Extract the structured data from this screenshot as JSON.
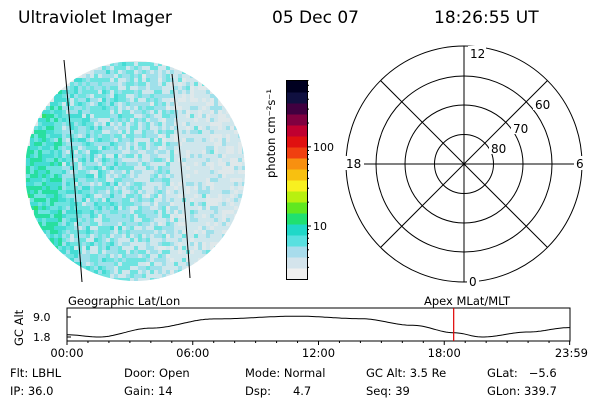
{
  "header": {
    "instrument": "Ultraviolet Imager",
    "date": "05 Dec 07",
    "time": "18:26:55 UT"
  },
  "colorbar": {
    "label": "photon cm⁻²s⁻¹",
    "ticks": [
      {
        "label": "100",
        "value": 100
      },
      {
        "label": "10",
        "value": 10
      }
    ],
    "colors": [
      "#f0f0f0",
      "#d4e4ec",
      "#a8dcec",
      "#58e0e0",
      "#20d8c8",
      "#20e070",
      "#60e820",
      "#b8f010",
      "#f8f020",
      "#f8c010",
      "#f89010",
      "#f04010",
      "#e01010",
      "#c00030",
      "#800040",
      "#400040",
      "#101040",
      "#000020"
    ]
  },
  "polar_plot": {
    "mlt_labels": {
      "top": "12",
      "left": "18",
      "right": "6",
      "bottom": "0"
    },
    "lat_labels": [
      {
        "label": "60",
        "value": 60
      },
      {
        "label": "70",
        "value": 70
      },
      {
        "label": "80",
        "value": 80
      }
    ]
  },
  "timeline": {
    "left_label": "Geographic Lat/Lon",
    "right_label": "Apex MLat/MLT",
    "axis_title": "GC Alt",
    "y_ticks": [
      {
        "label": "9.0",
        "value": 9.0
      },
      {
        "label": "1.8",
        "value": 1.8
      }
    ],
    "x_ticks": [
      {
        "label": "00:00",
        "hour": 0
      },
      {
        "label": "06:00",
        "hour": 6
      },
      {
        "label": "12:00",
        "hour": 12
      },
      {
        "label": "18:00",
        "hour": 18
      },
      {
        "label": "23:59",
        "hour": 23.983
      }
    ],
    "current_hour": 18.45,
    "marker_color": "#e00000"
  },
  "info": {
    "filter": "Flt: LBHL",
    "ip": "IP: 36.0",
    "door": "Door: Open",
    "gain": "Gain: 14",
    "mode": "Mode: Normal",
    "dsp": "Dsp:      4.7",
    "gc_alt": "GC Alt: 3.5 Re",
    "seq": "Seq: 39",
    "glat": "GLat:   −5.6",
    "glon": "GLon: 339.7"
  }
}
